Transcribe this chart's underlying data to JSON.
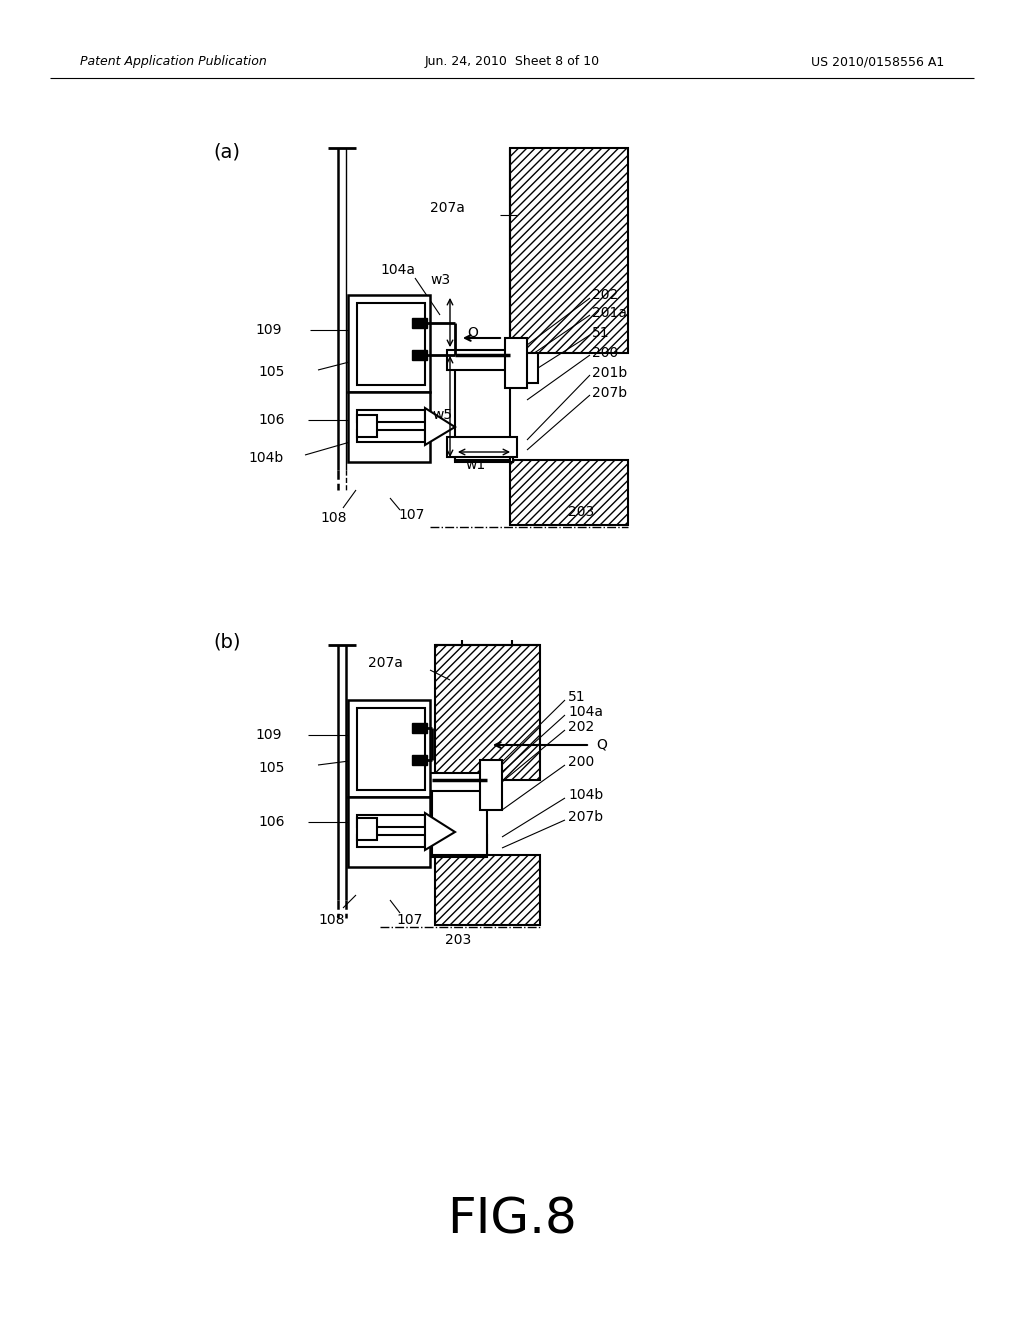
{
  "bg_color": "#ffffff",
  "header_left": "Patent Application Publication",
  "header_mid": "Jun. 24, 2010  Sheet 8 of 10",
  "header_right": "US 2010/0158556 A1",
  "fig_label": "FIG.8"
}
